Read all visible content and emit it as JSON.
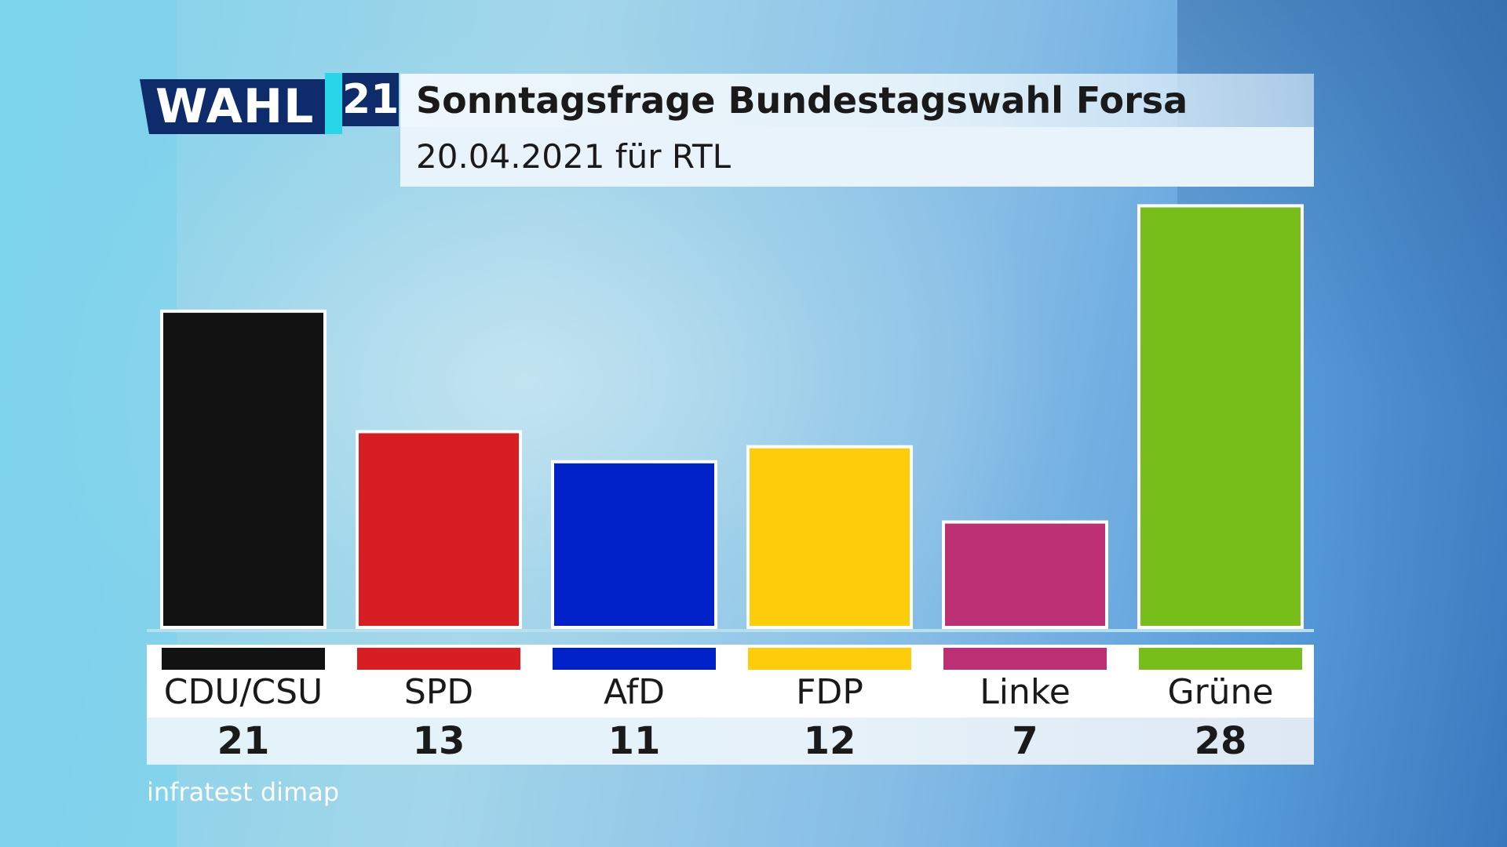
{
  "logo": {
    "wahl_text": "WAHL",
    "year_text": "21"
  },
  "header": {
    "title": "Sonntagsfrage Bundestagswahl Forsa",
    "subtitle": "20.04.2021 für RTL"
  },
  "source": "infratest dimap",
  "chart_data": {
    "type": "bar",
    "title": "Sonntagsfrage Bundestagswahl Forsa",
    "subtitle": "20.04.2021 für RTL",
    "categories": [
      "CDU/CSU",
      "SPD",
      "AfD",
      "FDP",
      "Linke",
      "Grüne"
    ],
    "values": [
      21,
      13,
      11,
      12,
      7,
      28
    ],
    "colors": [
      "#121212",
      "#d81e22",
      "#0021c8",
      "#fdcc0a",
      "#bd3075",
      "#78be1b"
    ],
    "xlabel": "",
    "ylabel": "",
    "grid": false,
    "legend": "none"
  }
}
